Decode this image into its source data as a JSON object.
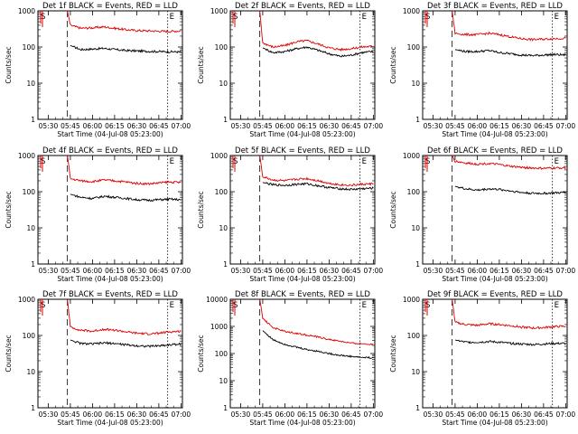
{
  "colors": {
    "events": "#000000",
    "lld": "#dd0000",
    "axes": "#000000",
    "background": "#ffffff"
  },
  "common": {
    "ylabel": "Counts/sec",
    "xlabel": "Start Time (04-Jul-08 05:23:00)",
    "yticks": [
      "1",
      "10",
      "100",
      "1000"
    ],
    "xticks": [
      "05:30",
      "05:45",
      "06:00",
      "06:15",
      "06:30",
      "06:45",
      "07:00"
    ]
  },
  "chart_data": [
    {
      "type": "line",
      "title": "Det 1f BLACK = Events, RED = LLD",
      "ylabel": "Counts/sec",
      "xlabel": "Start Time (04-Jul-08 05:23:00)",
      "y_scale": "log",
      "ylim": [
        1,
        1000
      ],
      "xlim": [
        "05:23",
        "07:01"
      ],
      "grid": false,
      "markers": [
        "S",
        "E"
      ],
      "series": [
        {
          "name": "Events",
          "color": "#000000",
          "x": [
            "05:45",
            "05:52",
            "06:00",
            "06:08",
            "06:15",
            "06:23",
            "06:30",
            "06:38",
            "06:45",
            "06:52",
            "07:00"
          ],
          "y": [
            110,
            85,
            88,
            92,
            85,
            80,
            78,
            76,
            75,
            74,
            73
          ]
        },
        {
          "name": "LLD",
          "color": "#dd0000",
          "x": [
            "05:43",
            "05:45",
            "05:52",
            "06:00",
            "06:08",
            "06:15",
            "06:23",
            "06:30",
            "06:38",
            "06:45",
            "06:52",
            "07:00"
          ],
          "y": [
            1000,
            400,
            330,
            340,
            360,
            330,
            300,
            285,
            280,
            275,
            270,
            280
          ]
        }
      ]
    },
    {
      "type": "line",
      "title": "Det 2f BLACK = Events, RED = LLD",
      "ylabel": "Counts/sec",
      "xlabel": "Start Time (04-Jul-08 05:23:00)",
      "y_scale": "log",
      "ylim": [
        1,
        1000
      ],
      "xlim": [
        "05:23",
        "07:01"
      ],
      "grid": false,
      "markers": [
        "S",
        "E"
      ],
      "series": [
        {
          "name": "Events",
          "color": "#000000",
          "x": [
            "05:45",
            "05:52",
            "06:00",
            "06:08",
            "06:15",
            "06:23",
            "06:30",
            "06:38",
            "06:45",
            "06:52",
            "07:00"
          ],
          "y": [
            95,
            70,
            75,
            90,
            100,
            80,
            65,
            55,
            60,
            70,
            75
          ]
        },
        {
          "name": "LLD",
          "color": "#dd0000",
          "x": [
            "05:43",
            "05:45",
            "05:52",
            "06:00",
            "06:08",
            "06:15",
            "06:23",
            "06:30",
            "06:38",
            "06:45",
            "06:52",
            "07:00"
          ],
          "y": [
            1000,
            130,
            100,
            110,
            140,
            150,
            120,
            95,
            85,
            90,
            100,
            105
          ]
        }
      ]
    },
    {
      "type": "line",
      "title": "Det 3f BLACK = Events, RED = LLD",
      "ylabel": "Counts/sec",
      "xlabel": "Start Time (04-Jul-08 05:23:00)",
      "y_scale": "log",
      "ylim": [
        1,
        1000
      ],
      "xlim": [
        "05:23",
        "07:01"
      ],
      "grid": false,
      "markers": [
        "S",
        "E"
      ],
      "series": [
        {
          "name": "Events",
          "color": "#000000",
          "x": [
            "05:45",
            "05:52",
            "06:00",
            "06:08",
            "06:15",
            "06:23",
            "06:30",
            "06:38",
            "06:45",
            "06:52",
            "07:00"
          ],
          "y": [
            85,
            75,
            75,
            80,
            70,
            65,
            60,
            58,
            60,
            62,
            60
          ]
        },
        {
          "name": "LLD",
          "color": "#dd0000",
          "x": [
            "05:43",
            "05:45",
            "05:52",
            "06:00",
            "06:08",
            "06:15",
            "06:23",
            "06:30",
            "06:38",
            "06:45",
            "06:52",
            "07:00"
          ],
          "y": [
            1000,
            240,
            220,
            220,
            240,
            220,
            190,
            170,
            160,
            165,
            170,
            175
          ]
        }
      ]
    },
    {
      "type": "line",
      "title": "Det 4f BLACK = Events, RED = LLD",
      "ylabel": "Counts/sec",
      "xlabel": "Start Time (04-Jul-08 05:23:00)",
      "y_scale": "log",
      "ylim": [
        1,
        1000
      ],
      "xlim": [
        "05:23",
        "07:01"
      ],
      "grid": false,
      "markers": [
        "S",
        "E"
      ],
      "series": [
        {
          "name": "Events",
          "color": "#000000",
          "x": [
            "05:45",
            "05:52",
            "06:00",
            "06:08",
            "06:15",
            "06:23",
            "06:30",
            "06:38",
            "06:45",
            "06:52",
            "07:00"
          ],
          "y": [
            85,
            70,
            65,
            75,
            70,
            65,
            60,
            58,
            60,
            62,
            60
          ]
        },
        {
          "name": "LLD",
          "color": "#dd0000",
          "x": [
            "05:43",
            "05:45",
            "05:52",
            "06:00",
            "06:08",
            "06:15",
            "06:23",
            "06:30",
            "06:38",
            "06:45",
            "06:52",
            "07:00"
          ],
          "y": [
            1000,
            230,
            200,
            190,
            210,
            200,
            185,
            170,
            165,
            175,
            185,
            180
          ]
        }
      ]
    },
    {
      "type": "line",
      "title": "Det 5f BLACK = Events, RED = LLD",
      "ylabel": "Counts/sec",
      "xlabel": "Start Time (04-Jul-08 05:23:00)",
      "y_scale": "log",
      "ylim": [
        1,
        1000
      ],
      "xlim": [
        "05:23",
        "07:01"
      ],
      "grid": false,
      "markers": [
        "S",
        "E"
      ],
      "series": [
        {
          "name": "Events",
          "color": "#000000",
          "x": [
            "05:45",
            "05:52",
            "06:00",
            "06:08",
            "06:15",
            "06:23",
            "06:30",
            "06:38",
            "06:45",
            "06:52",
            "07:00"
          ],
          "y": [
            180,
            155,
            150,
            160,
            165,
            145,
            130,
            120,
            115,
            120,
            125
          ]
        },
        {
          "name": "LLD",
          "color": "#dd0000",
          "x": [
            "05:43",
            "05:45",
            "05:52",
            "06:00",
            "06:08",
            "06:15",
            "06:23",
            "06:30",
            "06:38",
            "06:45",
            "06:52",
            "07:00"
          ],
          "y": [
            1000,
            260,
            210,
            200,
            220,
            230,
            200,
            170,
            155,
            150,
            160,
            165
          ]
        }
      ]
    },
    {
      "type": "line",
      "title": "Det 6f BLACK = Events, RED = LLD",
      "ylabel": "Counts/sec",
      "xlabel": "Start Time (04-Jul-08 05:23:00)",
      "y_scale": "log",
      "ylim": [
        1,
        1000
      ],
      "xlim": [
        "05:23",
        "07:01"
      ],
      "grid": false,
      "markers": [
        "S",
        "E"
      ],
      "series": [
        {
          "name": "Events",
          "color": "#000000",
          "x": [
            "05:45",
            "05:52",
            "06:00",
            "06:08",
            "06:15",
            "06:23",
            "06:30",
            "06:38",
            "06:45",
            "06:52",
            "07:00"
          ],
          "y": [
            140,
            120,
            110,
            120,
            115,
            105,
            95,
            90,
            90,
            92,
            95
          ]
        },
        {
          "name": "LLD",
          "color": "#dd0000",
          "x": [
            "05:43",
            "05:45",
            "05:52",
            "06:00",
            "06:08",
            "06:15",
            "06:23",
            "06:30",
            "06:38",
            "06:45",
            "06:52",
            "07:00"
          ],
          "y": [
            1000,
            700,
            620,
            580,
            600,
            560,
            500,
            470,
            450,
            440,
            450,
            460
          ]
        }
      ]
    },
    {
      "type": "line",
      "title": "Det 7f BLACK = Events, RED = LLD",
      "ylabel": "Counts/sec",
      "xlabel": "Start Time (04-Jul-08 05:23:00)",
      "y_scale": "log",
      "ylim": [
        1,
        1000
      ],
      "xlim": [
        "05:23",
        "07:01"
      ],
      "grid": false,
      "markers": [
        "S",
        "E"
      ],
      "series": [
        {
          "name": "Events",
          "color": "#000000",
          "x": [
            "05:45",
            "05:52",
            "06:00",
            "06:08",
            "06:15",
            "06:23",
            "06:30",
            "06:38",
            "06:45",
            "06:52",
            "07:00"
          ],
          "y": [
            75,
            60,
            58,
            62,
            60,
            55,
            52,
            50,
            52,
            55,
            58
          ]
        },
        {
          "name": "LLD",
          "color": "#dd0000",
          "x": [
            "05:43",
            "05:45",
            "05:52",
            "06:00",
            "06:08",
            "06:15",
            "06:23",
            "06:30",
            "06:38",
            "06:45",
            "06:52",
            "07:00"
          ],
          "y": [
            1000,
            170,
            140,
            130,
            150,
            140,
            125,
            115,
            110,
            115,
            125,
            130
          ]
        }
      ]
    },
    {
      "type": "line",
      "title": "Det 8f BLACK = Events, RED = LLD",
      "ylabel": "Counts/sec",
      "xlabel": "Start Time (04-Jul-08 05:23:00)",
      "y_scale": "log",
      "ylim": [
        1,
        10000
      ],
      "xlim": [
        "05:23",
        "07:01"
      ],
      "grid": false,
      "markers": [
        "S",
        "E"
      ],
      "series": [
        {
          "name": "Events",
          "color": "#000000",
          "x": [
            "05:45",
            "05:52",
            "06:00",
            "06:08",
            "06:15",
            "06:23",
            "06:30",
            "06:38",
            "06:45",
            "06:52",
            "07:00"
          ],
          "y": [
            700,
            320,
            220,
            170,
            140,
            120,
            100,
            85,
            78,
            72,
            70
          ]
        },
        {
          "name": "LLD",
          "color": "#dd0000",
          "x": [
            "05:43",
            "05:45",
            "05:52",
            "06:00",
            "06:08",
            "06:15",
            "06:23",
            "06:30",
            "06:38",
            "06:45",
            "06:52",
            "07:00"
          ],
          "y": [
            10000,
            2000,
            900,
            650,
            550,
            480,
            400,
            330,
            280,
            240,
            230,
            220
          ]
        }
      ]
    },
    {
      "type": "line",
      "title": "Det 9f BLACK = Events, RED = LLD",
      "ylabel": "Counts/sec",
      "xlabel": "Start Time (04-Jul-08 05:23:00)",
      "y_scale": "log",
      "ylim": [
        1,
        1000
      ],
      "xlim": [
        "05:23",
        "07:01"
      ],
      "grid": false,
      "markers": [
        "S",
        "E"
      ],
      "series": [
        {
          "name": "Events",
          "color": "#000000",
          "x": [
            "05:45",
            "05:52",
            "06:00",
            "06:08",
            "06:15",
            "06:23",
            "06:30",
            "06:38",
            "06:45",
            "06:52",
            "07:00"
          ],
          "y": [
            75,
            65,
            65,
            68,
            65,
            60,
            58,
            56,
            58,
            60,
            60
          ]
        },
        {
          "name": "LLD",
          "color": "#dd0000",
          "x": [
            "05:43",
            "05:45",
            "05:52",
            "06:00",
            "06:08",
            "06:15",
            "06:23",
            "06:30",
            "06:38",
            "06:45",
            "06:52",
            "07:00"
          ],
          "y": [
            1000,
            230,
            200,
            190,
            210,
            200,
            185,
            170,
            160,
            165,
            175,
            180
          ]
        }
      ]
    }
  ]
}
